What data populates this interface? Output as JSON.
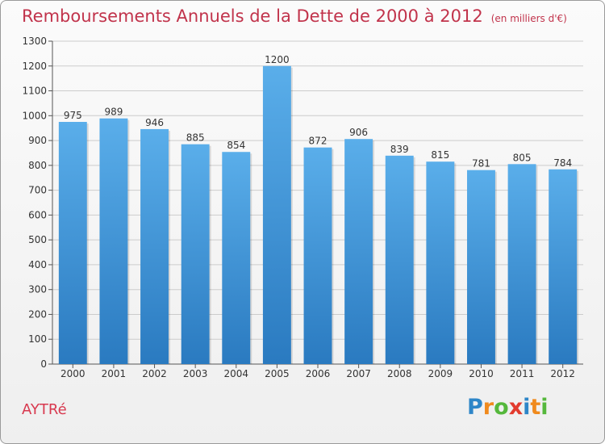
{
  "title": "Remboursements Annuels de la Dette de 2000 à 2012",
  "subtitle": "(en milliers d'€)",
  "city": "AYTRé",
  "logo": {
    "letters": [
      "P",
      "r",
      "o",
      "x",
      "i",
      "t",
      "i"
    ],
    "colors": [
      "#2e86c8",
      "#f08a1d",
      "#55b83c",
      "#e23b2e",
      "#2e86c8",
      "#f08a1d",
      "#55b83c"
    ]
  },
  "colors": {
    "bar_top": "#5aaeea",
    "bar_bottom": "#2a7ac0",
    "axis": "#555555",
    "grid": "#cccccc"
  },
  "chart_data": {
    "type": "bar",
    "title": "Remboursements Annuels de la Dette de 2000 à 2012",
    "subtitle": "(en milliers d'€)",
    "categories": [
      "2000",
      "2001",
      "2002",
      "2003",
      "2004",
      "2005",
      "2006",
      "2007",
      "2008",
      "2009",
      "2010",
      "2011",
      "2012"
    ],
    "values": [
      975,
      989,
      946,
      885,
      854,
      1200,
      872,
      906,
      839,
      815,
      781,
      805,
      784
    ],
    "ylim": [
      0,
      1300
    ],
    "yticks": [
      0,
      100,
      200,
      300,
      400,
      500,
      600,
      700,
      800,
      900,
      1000,
      1100,
      1200,
      1300
    ],
    "grid": true,
    "data_labels": true
  }
}
